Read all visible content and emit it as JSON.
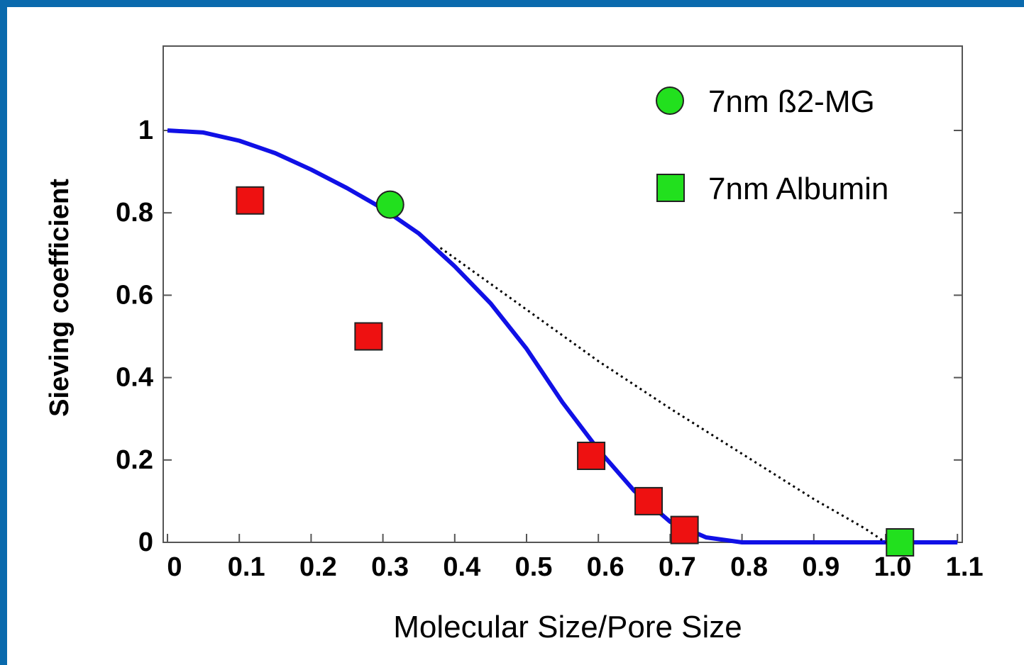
{
  "chart_data": {
    "type": "scatter",
    "xlabel": "Molecular Size/Pore Size",
    "ylabel": "Sieving coefficient",
    "xlim": [
      0,
      1.1
    ],
    "ylim": [
      0,
      1.0
    ],
    "x_ticks": [
      "0",
      "0.1",
      "0.2",
      "0.3",
      "0.4",
      "0.5",
      "0.6",
      "0.7",
      "0.8",
      "0.9",
      "1.0",
      "1.1"
    ],
    "y_ticks": [
      "0",
      "0.2",
      "0.4",
      "0.6",
      "0.8",
      "1"
    ],
    "grid": false,
    "legend_position": "top-right",
    "series": [
      {
        "name": "7nm ß2-MG",
        "marker": "circle",
        "color": "#22e01e",
        "points": [
          {
            "x": 0.31,
            "y": 0.82
          }
        ]
      },
      {
        "name": "7nm Albumin",
        "marker": "square",
        "color": "#22e01e",
        "points": [
          {
            "x": 1.02,
            "y": 0.0
          }
        ]
      },
      {
        "marker": "square",
        "color": "#ee1111",
        "points": [
          {
            "x": 0.115,
            "y": 0.83
          },
          {
            "x": 0.28,
            "y": 0.5
          },
          {
            "x": 0.59,
            "y": 0.21
          },
          {
            "x": 0.67,
            "y": 0.1
          },
          {
            "x": 0.72,
            "y": 0.03
          }
        ]
      },
      {
        "style": "solid-line",
        "color": "#1010e6",
        "points": [
          {
            "x": 0,
            "y": 1.0
          },
          {
            "x": 0.05,
            "y": 0.995
          },
          {
            "x": 0.1,
            "y": 0.975
          },
          {
            "x": 0.15,
            "y": 0.945
          },
          {
            "x": 0.2,
            "y": 0.905
          },
          {
            "x": 0.25,
            "y": 0.86
          },
          {
            "x": 0.3,
            "y": 0.81
          },
          {
            "x": 0.35,
            "y": 0.75
          },
          {
            "x": 0.4,
            "y": 0.67
          },
          {
            "x": 0.45,
            "y": 0.58
          },
          {
            "x": 0.5,
            "y": 0.47
          },
          {
            "x": 0.55,
            "y": 0.34
          },
          {
            "x": 0.6,
            "y": 0.225
          },
          {
            "x": 0.65,
            "y": 0.125
          },
          {
            "x": 0.7,
            "y": 0.05
          },
          {
            "x": 0.75,
            "y": 0.012
          },
          {
            "x": 0.8,
            "y": 0.0
          },
          {
            "x": 1.1,
            "y": 0.0
          }
        ]
      },
      {
        "style": "dotted-line",
        "color": "#000000",
        "points": [
          {
            "x": 0.38,
            "y": 0.715
          },
          {
            "x": 0.5,
            "y": 0.565
          },
          {
            "x": 0.6,
            "y": 0.44
          },
          {
            "x": 0.7,
            "y": 0.325
          },
          {
            "x": 0.8,
            "y": 0.215
          },
          {
            "x": 0.9,
            "y": 0.105
          },
          {
            "x": 0.97,
            "y": 0.035
          },
          {
            "x": 1.0,
            "y": 0.0
          }
        ]
      }
    ]
  }
}
